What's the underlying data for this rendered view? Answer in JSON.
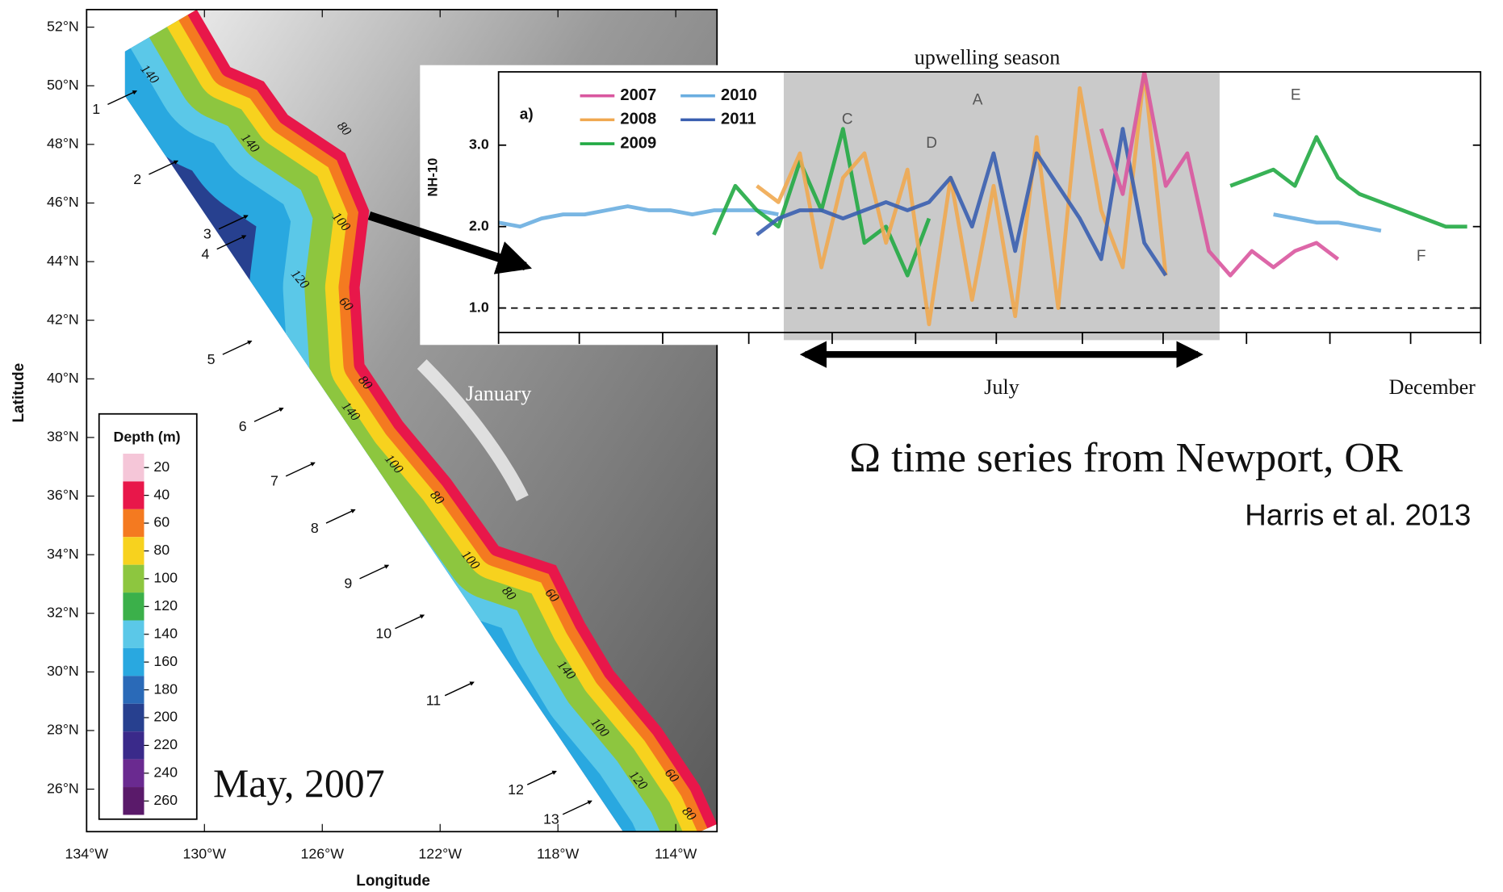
{
  "slide": {
    "heading": "Ω time series from Newport, OR",
    "citation": "Harris et al. 2013"
  },
  "chart_data": [
    {
      "type": "map",
      "caption": "May, 2007",
      "xlabel": "Longitude",
      "ylabel": "Latitude",
      "xlim": [
        -134,
        -112.6
      ],
      "ylim": [
        24.55,
        52.6
      ],
      "xticks": [
        {
          "value": -134,
          "label": "134°W"
        },
        {
          "value": -130,
          "label": "130°W"
        },
        {
          "value": -126,
          "label": "126°W"
        },
        {
          "value": -122,
          "label": "122°W"
        },
        {
          "value": -118,
          "label": "118°W"
        },
        {
          "value": -114,
          "label": "114°W"
        }
      ],
      "yticks": [
        {
          "value": 26,
          "label": "26°N"
        },
        {
          "value": 28,
          "label": "28°N"
        },
        {
          "value": 30,
          "label": "30°N"
        },
        {
          "value": 32,
          "label": "32°N"
        },
        {
          "value": 34,
          "label": "34°N"
        },
        {
          "value": 36,
          "label": "36°N"
        },
        {
          "value": 38,
          "label": "38°N"
        },
        {
          "value": 40,
          "label": "40°N"
        },
        {
          "value": 42,
          "label": "42°N"
        },
        {
          "value": 44,
          "label": "44°N"
        },
        {
          "value": 46,
          "label": "46°N"
        },
        {
          "value": 48,
          "label": "48°N"
        },
        {
          "value": 50,
          "label": "50°N"
        },
        {
          "value": 52,
          "label": "52°N"
        }
      ],
      "colorbar": {
        "title": "Depth (m)",
        "ticks": [
          20,
          40,
          60,
          80,
          100,
          120,
          140,
          160,
          180,
          200,
          220,
          240,
          260
        ],
        "colors": [
          "#f5c6d8",
          "#e8174a",
          "#f47a20",
          "#f7d21e",
          "#8dc63f",
          "#3bb04a",
          "#5bc8e8",
          "#29a8e0",
          "#2a6ab8",
          "#27408f",
          "#3a2a8a",
          "#6a2a90",
          "#5a1a6a"
        ]
      },
      "stations": [
        1,
        2,
        3,
        4,
        5,
        6,
        7,
        8,
        9,
        10,
        11,
        12,
        13
      ],
      "contour_labels": [
        140,
        140,
        100,
        80,
        120,
        60,
        80,
        140,
        100,
        80,
        80,
        60,
        100,
        140,
        100,
        120,
        60,
        80
      ],
      "place_label": "January"
    },
    {
      "type": "line",
      "title": "upwelling season",
      "panel_label": "a)",
      "ylabel": "NH-10",
      "xlim": [
        0,
        365
      ],
      "ylim": [
        0.7,
        3.9
      ],
      "yticks": [
        {
          "value": 1,
          "label": "1.0"
        },
        {
          "value": 2,
          "label": "2.0"
        },
        {
          "value": 3,
          "label": "3.0"
        }
      ],
      "minor_xticks": [
        0,
        30,
        61,
        93,
        124,
        155,
        185,
        217,
        247,
        278,
        309,
        339,
        365
      ],
      "xtick_labels": [
        {
          "value": 187,
          "label": "July"
        },
        {
          "value": 347,
          "label": "December"
        }
      ],
      "shaded": [
        106,
        268
      ],
      "reference_line": 1,
      "annotations": [
        "C",
        "D",
        "A",
        "E",
        "F"
      ],
      "x": [
        0,
        8,
        16,
        24,
        32,
        40,
        48,
        56,
        64,
        72,
        80,
        88,
        96,
        104,
        112,
        120,
        128,
        136,
        144,
        152,
        160,
        168,
        176,
        184,
        192,
        200,
        208,
        216,
        224,
        232,
        240,
        248,
        256,
        264,
        272,
        280,
        288,
        296,
        304,
        312,
        320,
        328,
        336,
        344,
        352,
        360
      ],
      "series": [
        {
          "name": "2010",
          "color": "#6aaee0",
          "values": [
            2.05,
            2.0,
            2.1,
            2.15,
            2.15,
            2.2,
            2.25,
            2.2,
            2.2,
            2.15,
            2.2,
            2.2,
            2.2,
            2.15,
            null,
            null,
            null,
            null,
            null,
            null,
            null,
            null,
            null,
            null,
            null,
            null,
            null,
            null,
            null,
            null,
            null,
            null,
            null,
            null,
            null,
            null,
            2.15,
            2.1,
            2.05,
            2.05,
            2.0,
            1.95,
            null,
            null,
            null,
            null
          ]
        },
        {
          "name": "2009",
          "color": "#22aa44",
          "values": [
            null,
            null,
            null,
            null,
            null,
            null,
            null,
            null,
            null,
            null,
            1.9,
            2.5,
            2.2,
            2.0,
            2.8,
            2.2,
            3.2,
            1.8,
            2.0,
            1.4,
            2.1,
            null,
            null,
            null,
            null,
            null,
            null,
            null,
            null,
            null,
            null,
            null,
            null,
            null,
            2.5,
            2.6,
            2.7,
            2.5,
            3.1,
            2.6,
            2.4,
            2.3,
            2.2,
            2.1,
            2.0,
            2.0
          ]
        },
        {
          "name": "2008",
          "color": "#f0a850",
          "values": [
            null,
            null,
            null,
            null,
            null,
            null,
            null,
            null,
            null,
            null,
            null,
            null,
            2.5,
            2.3,
            2.9,
            1.5,
            2.6,
            2.9,
            1.8,
            2.7,
            0.8,
            2.6,
            1.1,
            2.5,
            0.9,
            3.1,
            1.0,
            3.7,
            2.2,
            1.5,
            3.9,
            1.4,
            null,
            null,
            null,
            null,
            null,
            null,
            null,
            null,
            null,
            null,
            null,
            null,
            null,
            null
          ]
        },
        {
          "name": "2011",
          "color": "#3a5fb0",
          "values": [
            null,
            null,
            null,
            null,
            null,
            null,
            null,
            null,
            null,
            null,
            null,
            null,
            1.9,
            2.1,
            2.2,
            2.2,
            2.1,
            2.2,
            2.3,
            2.2,
            2.3,
            2.6,
            2.0,
            2.9,
            1.7,
            2.9,
            2.5,
            2.1,
            1.6,
            3.2,
            1.8,
            1.4,
            null,
            null,
            null,
            null,
            null,
            null,
            null,
            null,
            null,
            null,
            null,
            null,
            null,
            null
          ]
        },
        {
          "name": "2007",
          "color": "#d9579f",
          "values": [
            null,
            null,
            null,
            null,
            null,
            null,
            null,
            null,
            null,
            null,
            null,
            null,
            null,
            null,
            null,
            null,
            null,
            null,
            null,
            null,
            null,
            null,
            null,
            null,
            null,
            null,
            null,
            null,
            3.2,
            2.4,
            3.9,
            2.5,
            2.9,
            1.7,
            1.4,
            1.7,
            1.5,
            1.7,
            1.8,
            1.6,
            null,
            null,
            null,
            null,
            null,
            null
          ]
        }
      ]
    }
  ]
}
